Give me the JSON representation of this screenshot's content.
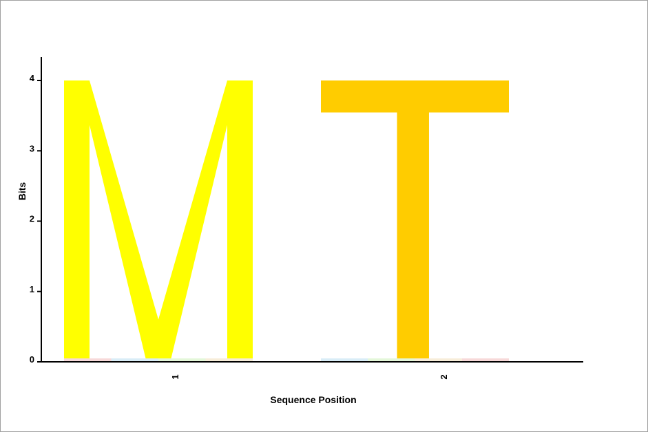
{
  "chart_data": {
    "type": "sequence-logo",
    "xlabel": "Sequence Position",
    "ylabel": "Bits",
    "ylim": [
      0,
      4
    ],
    "yticks": [
      "0",
      "1",
      "2",
      "3",
      "4"
    ],
    "positions": [
      "1",
      "2"
    ],
    "series": [
      {
        "position": "1",
        "letter": "M",
        "bits": 4.0,
        "color": "#ffff00"
      },
      {
        "position": "2",
        "letter": "T",
        "bits": 4.0,
        "color": "#ffcc00"
      }
    ],
    "grid": false,
    "legend": "none"
  }
}
